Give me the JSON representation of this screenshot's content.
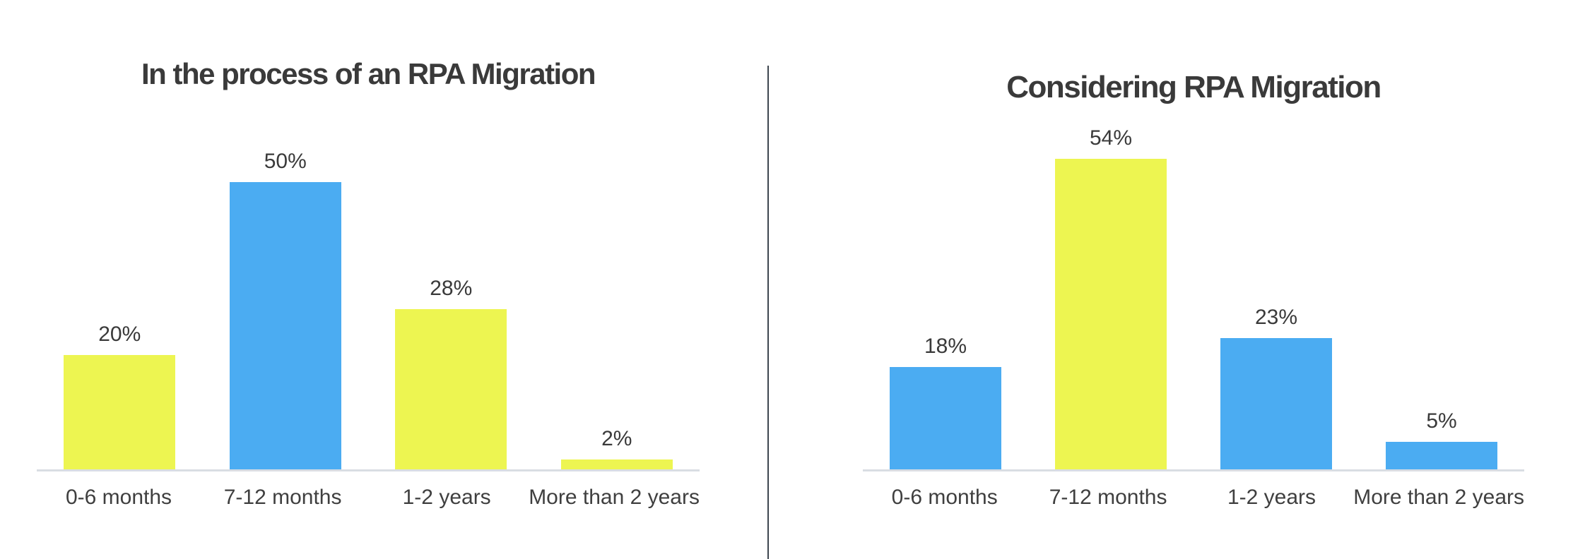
{
  "palette": {
    "yellow": "#EDF551",
    "blue": "#4BACF2",
    "title_text": "#3A3A3A",
    "label_text": "#3F3F3F",
    "baseline": "#D9DDE3",
    "divider": "#3E454F",
    "background": "#FFFFFF"
  },
  "chart_data": [
    {
      "type": "bar",
      "title": "In the process of an RPA Migration",
      "categories": [
        "0-6 months",
        "7-12 months",
        "1-2 years",
        "More than 2 years"
      ],
      "values": [
        20,
        50,
        28,
        2
      ],
      "value_labels": [
        "20%",
        "50%",
        "28%",
        "2%"
      ],
      "bar_colors": [
        "yellow",
        "blue",
        "yellow",
        "yellow"
      ],
      "ylabel": "",
      "xlabel": "",
      "ylim": [
        0,
        58
      ],
      "grid": false,
      "legend_position": "none",
      "axis_ticks_visible": false
    },
    {
      "type": "bar",
      "title": "Considering RPA Migration",
      "categories": [
        "0-6 months",
        "7-12 months",
        "1-2 years",
        "More than 2 years"
      ],
      "values": [
        18,
        54,
        23,
        5
      ],
      "value_labels": [
        "18%",
        "54%",
        "23%",
        "5%"
      ],
      "bar_colors": [
        "blue",
        "yellow",
        "blue",
        "blue"
      ],
      "ylabel": "",
      "xlabel": "",
      "ylim": [
        0,
        58
      ],
      "grid": false,
      "legend_position": "none",
      "axis_ticks_visible": false
    }
  ]
}
